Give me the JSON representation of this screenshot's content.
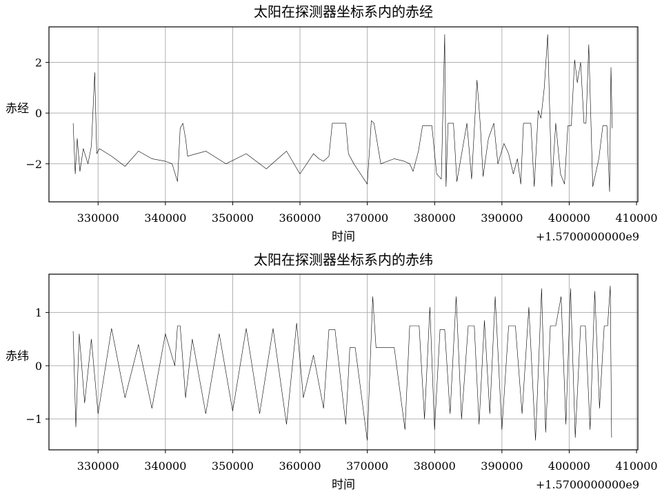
{
  "chart_data": [
    {
      "type": "line",
      "title": "太阳在探测器坐标系内的赤经",
      "xlabel": "时间",
      "ylabel": "赤经",
      "x_offset_label": "+1.5700000000e9",
      "xlim": [
        322700,
        410200
      ],
      "ylim": [
        -3.5,
        3.4
      ],
      "x_ticks": [
        330000,
        340000,
        350000,
        360000,
        370000,
        380000,
        390000,
        400000,
        410000
      ],
      "x_tick_labels": [
        "330000",
        "340000",
        "350000",
        "360000",
        "370000",
        "380000",
        "390000",
        "400000",
        "410000"
      ],
      "y_ticks": [
        -2,
        0,
        2
      ],
      "y_tick_labels": [
        "−2",
        "0",
        "2"
      ],
      "grid": true,
      "line_color": "#000000",
      "series": [
        {
          "x": [
            326300,
            326600,
            326900,
            327300,
            327800,
            328500,
            329000,
            329500,
            329800,
            330200,
            332000,
            334000,
            336000,
            338000,
            340000,
            341000,
            341800,
            342200,
            342600,
            343000,
            343300,
            346000,
            349000,
            352000,
            355000,
            358000,
            360000,
            362000,
            362800,
            363500,
            364300,
            364800,
            365200,
            366800,
            367200,
            368000,
            370000,
            370600,
            371000,
            372000,
            374000,
            375500,
            376300,
            376800,
            377600,
            378200,
            379000,
            379600,
            380300,
            381000,
            381500,
            381700,
            382000,
            382800,
            383300,
            384800,
            385500,
            386300,
            386800,
            387200,
            388000,
            388800,
            389400,
            390300,
            391000,
            391700,
            392300,
            392800,
            393200,
            394300,
            394800,
            395400,
            395800,
            396300,
            396800,
            397400,
            398000,
            398700,
            399300,
            399800,
            400300,
            400800,
            401200,
            401700,
            402200,
            402500,
            402900,
            403500,
            404400,
            405000,
            405600,
            406000,
            406200,
            406400
          ],
          "y": [
            -0.4,
            -2.4,
            -1.0,
            -2.3,
            -1.4,
            -2.0,
            -1.3,
            1.6,
            -1.6,
            -1.4,
            -1.7,
            -2.1,
            -1.5,
            -1.8,
            -1.9,
            -2.0,
            -2.7,
            -0.6,
            -0.4,
            -1.0,
            -1.7,
            -1.5,
            -2.0,
            -1.6,
            -2.2,
            -1.5,
            -2.4,
            -1.6,
            -1.8,
            -1.9,
            -1.7,
            -0.4,
            -0.4,
            -0.4,
            -1.6,
            -2.0,
            -2.8,
            -0.3,
            -0.4,
            -2.0,
            -1.8,
            -1.9,
            -2.0,
            -2.3,
            -1.5,
            -0.5,
            -0.5,
            -0.5,
            -2.4,
            -2.6,
            3.1,
            -2.9,
            -0.4,
            -0.4,
            -2.7,
            -0.4,
            -2.6,
            1.3,
            -0.5,
            -2.5,
            -1.0,
            -0.4,
            -2.0,
            -1.2,
            -1.6,
            -2.4,
            -1.8,
            -2.8,
            -0.4,
            -0.4,
            -2.9,
            0.1,
            -0.2,
            1.0,
            3.1,
            -2.9,
            -0.4,
            -2.4,
            -2.8,
            -0.5,
            -0.5,
            2.1,
            1.2,
            2.0,
            -0.4,
            -0.4,
            2.7,
            -2.9,
            -1.8,
            -0.5,
            -0.5,
            -3.1,
            1.8,
            -0.6
          ]
        }
      ]
    },
    {
      "type": "line",
      "title": "太阳在探测器坐标系内的赤纬",
      "xlabel": "时间",
      "ylabel": "赤纬",
      "x_offset_label": "+1.5700000000e9",
      "xlim": [
        322700,
        410200
      ],
      "ylim": [
        -1.58,
        1.72
      ],
      "x_ticks": [
        330000,
        340000,
        350000,
        360000,
        370000,
        380000,
        390000,
        400000,
        410000
      ],
      "x_tick_labels": [
        "330000",
        "340000",
        "350000",
        "360000",
        "370000",
        "380000",
        "390000",
        "400000",
        "410000"
      ],
      "y_ticks": [
        -1,
        0,
        1
      ],
      "y_tick_labels": [
        "−1",
        "0",
        "1"
      ],
      "grid": true,
      "line_color": "#000000",
      "series": [
        {
          "x": [
            326300,
            326700,
            327200,
            328000,
            329000,
            330000,
            332000,
            334000,
            336000,
            338000,
            340000,
            341400,
            341800,
            342200,
            343000,
            344000,
            346000,
            348000,
            350000,
            352000,
            354000,
            356000,
            358000,
            359500,
            360500,
            362000,
            363500,
            364300,
            364800,
            365200,
            366800,
            367400,
            368200,
            370000,
            370800,
            371300,
            372500,
            374000,
            375600,
            376300,
            377100,
            377700,
            378500,
            379300,
            380000,
            380800,
            381500,
            382300,
            383200,
            384000,
            385000,
            385900,
            386600,
            387400,
            388200,
            389000,
            390000,
            391000,
            392000,
            393000,
            394000,
            395000,
            395900,
            396500,
            397200,
            398000,
            398800,
            399500,
            400200,
            400900,
            401700,
            402400,
            403100,
            403800,
            404500,
            405200,
            405700,
            406100,
            406300
          ],
          "y": [
            0.65,
            -1.15,
            0.6,
            -0.7,
            0.5,
            -0.9,
            0.7,
            -0.6,
            0.4,
            -0.8,
            0.6,
            0.0,
            0.75,
            0.75,
            -0.6,
            0.5,
            -0.9,
            0.6,
            -0.85,
            0.7,
            -0.9,
            0.7,
            -1.1,
            0.8,
            -0.6,
            0.2,
            -0.8,
            0.68,
            0.68,
            0.68,
            -1.1,
            0.34,
            0.34,
            -1.4,
            1.3,
            0.34,
            0.34,
            0.34,
            -1.2,
            0.75,
            0.75,
            0.75,
            -1.0,
            1.1,
            -1.2,
            0.68,
            0.68,
            -0.9,
            1.3,
            -1.0,
            0.75,
            0.75,
            -1.1,
            0.85,
            -0.9,
            1.3,
            -1.2,
            0.75,
            0.75,
            -0.9,
            1.1,
            -1.4,
            1.45,
            -1.25,
            0.75,
            0.75,
            1.3,
            -1.1,
            1.45,
            -1.35,
            0.75,
            0.75,
            -1.2,
            1.4,
            -0.8,
            0.75,
            0.75,
            1.5,
            -1.35
          ]
        }
      ]
    }
  ]
}
